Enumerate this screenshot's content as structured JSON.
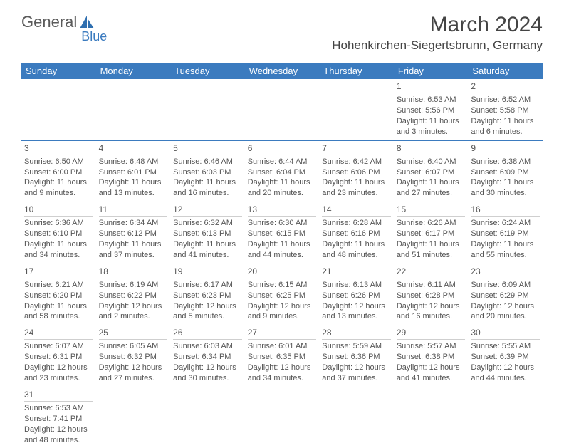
{
  "brand": {
    "name_a": "General",
    "name_b": "Blue"
  },
  "header": {
    "month_title": "March 2024",
    "location": "Hohenkirchen-Siegertsbrunn, Germany"
  },
  "colors": {
    "header_bg": "#3b7bbf",
    "header_text": "#ffffff",
    "row_divider": "#3b7bbf",
    "day_divider": "#cfcfcf",
    "body_text": "#555555",
    "title_text": "#444444",
    "page_bg": "#ffffff"
  },
  "typography": {
    "font_family": "Arial, Helvetica, sans-serif",
    "month_title_fontsize_pt": 23,
    "location_fontsize_pt": 13,
    "weekday_header_fontsize_pt": 10,
    "cell_fontsize_pt": 8.5
  },
  "calendar": {
    "columns": [
      "Sunday",
      "Monday",
      "Tuesday",
      "Wednesday",
      "Thursday",
      "Friday",
      "Saturday"
    ],
    "weeks": [
      [
        null,
        null,
        null,
        null,
        null,
        {
          "d": "1",
          "sr": "Sunrise: 6:53 AM",
          "ss": "Sunset: 5:56 PM",
          "dl1": "Daylight: 11 hours",
          "dl2": "and 3 minutes."
        },
        {
          "d": "2",
          "sr": "Sunrise: 6:52 AM",
          "ss": "Sunset: 5:58 PM",
          "dl1": "Daylight: 11 hours",
          "dl2": "and 6 minutes."
        }
      ],
      [
        {
          "d": "3",
          "sr": "Sunrise: 6:50 AM",
          "ss": "Sunset: 6:00 PM",
          "dl1": "Daylight: 11 hours",
          "dl2": "and 9 minutes."
        },
        {
          "d": "4",
          "sr": "Sunrise: 6:48 AM",
          "ss": "Sunset: 6:01 PM",
          "dl1": "Daylight: 11 hours",
          "dl2": "and 13 minutes."
        },
        {
          "d": "5",
          "sr": "Sunrise: 6:46 AM",
          "ss": "Sunset: 6:03 PM",
          "dl1": "Daylight: 11 hours",
          "dl2": "and 16 minutes."
        },
        {
          "d": "6",
          "sr": "Sunrise: 6:44 AM",
          "ss": "Sunset: 6:04 PM",
          "dl1": "Daylight: 11 hours",
          "dl2": "and 20 minutes."
        },
        {
          "d": "7",
          "sr": "Sunrise: 6:42 AM",
          "ss": "Sunset: 6:06 PM",
          "dl1": "Daylight: 11 hours",
          "dl2": "and 23 minutes."
        },
        {
          "d": "8",
          "sr": "Sunrise: 6:40 AM",
          "ss": "Sunset: 6:07 PM",
          "dl1": "Daylight: 11 hours",
          "dl2": "and 27 minutes."
        },
        {
          "d": "9",
          "sr": "Sunrise: 6:38 AM",
          "ss": "Sunset: 6:09 PM",
          "dl1": "Daylight: 11 hours",
          "dl2": "and 30 minutes."
        }
      ],
      [
        {
          "d": "10",
          "sr": "Sunrise: 6:36 AM",
          "ss": "Sunset: 6:10 PM",
          "dl1": "Daylight: 11 hours",
          "dl2": "and 34 minutes."
        },
        {
          "d": "11",
          "sr": "Sunrise: 6:34 AM",
          "ss": "Sunset: 6:12 PM",
          "dl1": "Daylight: 11 hours",
          "dl2": "and 37 minutes."
        },
        {
          "d": "12",
          "sr": "Sunrise: 6:32 AM",
          "ss": "Sunset: 6:13 PM",
          "dl1": "Daylight: 11 hours",
          "dl2": "and 41 minutes."
        },
        {
          "d": "13",
          "sr": "Sunrise: 6:30 AM",
          "ss": "Sunset: 6:15 PM",
          "dl1": "Daylight: 11 hours",
          "dl2": "and 44 minutes."
        },
        {
          "d": "14",
          "sr": "Sunrise: 6:28 AM",
          "ss": "Sunset: 6:16 PM",
          "dl1": "Daylight: 11 hours",
          "dl2": "and 48 minutes."
        },
        {
          "d": "15",
          "sr": "Sunrise: 6:26 AM",
          "ss": "Sunset: 6:17 PM",
          "dl1": "Daylight: 11 hours",
          "dl2": "and 51 minutes."
        },
        {
          "d": "16",
          "sr": "Sunrise: 6:24 AM",
          "ss": "Sunset: 6:19 PM",
          "dl1": "Daylight: 11 hours",
          "dl2": "and 55 minutes."
        }
      ],
      [
        {
          "d": "17",
          "sr": "Sunrise: 6:21 AM",
          "ss": "Sunset: 6:20 PM",
          "dl1": "Daylight: 11 hours",
          "dl2": "and 58 minutes."
        },
        {
          "d": "18",
          "sr": "Sunrise: 6:19 AM",
          "ss": "Sunset: 6:22 PM",
          "dl1": "Daylight: 12 hours",
          "dl2": "and 2 minutes."
        },
        {
          "d": "19",
          "sr": "Sunrise: 6:17 AM",
          "ss": "Sunset: 6:23 PM",
          "dl1": "Daylight: 12 hours",
          "dl2": "and 5 minutes."
        },
        {
          "d": "20",
          "sr": "Sunrise: 6:15 AM",
          "ss": "Sunset: 6:25 PM",
          "dl1": "Daylight: 12 hours",
          "dl2": "and 9 minutes."
        },
        {
          "d": "21",
          "sr": "Sunrise: 6:13 AM",
          "ss": "Sunset: 6:26 PM",
          "dl1": "Daylight: 12 hours",
          "dl2": "and 13 minutes."
        },
        {
          "d": "22",
          "sr": "Sunrise: 6:11 AM",
          "ss": "Sunset: 6:28 PM",
          "dl1": "Daylight: 12 hours",
          "dl2": "and 16 minutes."
        },
        {
          "d": "23",
          "sr": "Sunrise: 6:09 AM",
          "ss": "Sunset: 6:29 PM",
          "dl1": "Daylight: 12 hours",
          "dl2": "and 20 minutes."
        }
      ],
      [
        {
          "d": "24",
          "sr": "Sunrise: 6:07 AM",
          "ss": "Sunset: 6:31 PM",
          "dl1": "Daylight: 12 hours",
          "dl2": "and 23 minutes."
        },
        {
          "d": "25",
          "sr": "Sunrise: 6:05 AM",
          "ss": "Sunset: 6:32 PM",
          "dl1": "Daylight: 12 hours",
          "dl2": "and 27 minutes."
        },
        {
          "d": "26",
          "sr": "Sunrise: 6:03 AM",
          "ss": "Sunset: 6:34 PM",
          "dl1": "Daylight: 12 hours",
          "dl2": "and 30 minutes."
        },
        {
          "d": "27",
          "sr": "Sunrise: 6:01 AM",
          "ss": "Sunset: 6:35 PM",
          "dl1": "Daylight: 12 hours",
          "dl2": "and 34 minutes."
        },
        {
          "d": "28",
          "sr": "Sunrise: 5:59 AM",
          "ss": "Sunset: 6:36 PM",
          "dl1": "Daylight: 12 hours",
          "dl2": "and 37 minutes."
        },
        {
          "d": "29",
          "sr": "Sunrise: 5:57 AM",
          "ss": "Sunset: 6:38 PM",
          "dl1": "Daylight: 12 hours",
          "dl2": "and 41 minutes."
        },
        {
          "d": "30",
          "sr": "Sunrise: 5:55 AM",
          "ss": "Sunset: 6:39 PM",
          "dl1": "Daylight: 12 hours",
          "dl2": "and 44 minutes."
        }
      ],
      [
        {
          "d": "31",
          "sr": "Sunrise: 6:53 AM",
          "ss": "Sunset: 7:41 PM",
          "dl1": "Daylight: 12 hours",
          "dl2": "and 48 minutes."
        },
        null,
        null,
        null,
        null,
        null,
        null
      ]
    ]
  }
}
